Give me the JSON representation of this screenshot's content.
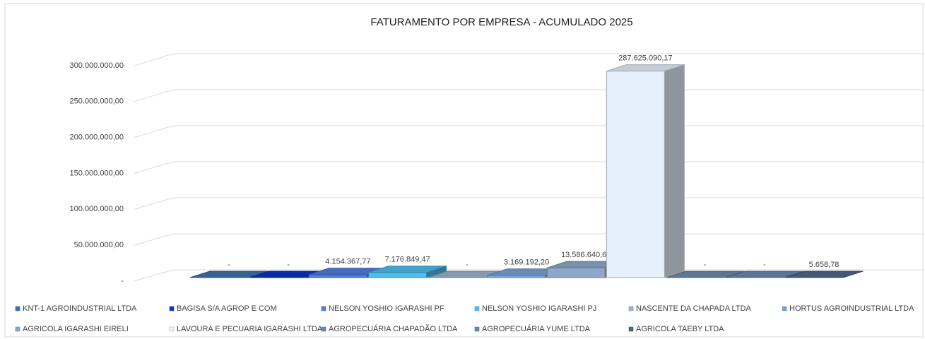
{
  "chart_data": {
    "type": "bar3d",
    "title": "FATURAMENTO POR EMPRESA - ACUMULADO 2025",
    "ylim": [
      0,
      300000000
    ],
    "yticks": [
      {
        "value": 0,
        "label": "-"
      },
      {
        "value": 50000000,
        "label": "50.000.000,00"
      },
      {
        "value": 100000000,
        "label": "100.000.000,00"
      },
      {
        "value": 150000000,
        "label": "150.000.000,00"
      },
      {
        "value": 200000000,
        "label": "200.000.000,00"
      },
      {
        "value": 250000000,
        "label": "250.000.000,00"
      },
      {
        "value": 300000000,
        "label": "300.000.000,00"
      }
    ],
    "grid": true,
    "legend": "bottom",
    "series": [
      {
        "name": "KNT-1 AGROINDUSTRIAL LTDA",
        "color": "#3f74a8",
        "values": [
          0
        ],
        "value_labels": [
          "-"
        ]
      },
      {
        "name": "BAGISA S/A AGROP E COM",
        "color": "#0a35c8",
        "values": [
          0
        ],
        "value_labels": [
          "-"
        ]
      },
      {
        "name": "NELSON YOSHIO IGARASHI PF",
        "color": "#4f7ee0",
        "values": [
          4154367.77
        ],
        "value_labels": [
          "4.154.367,77"
        ]
      },
      {
        "name": "NELSON YOSHIO IGARASHI PJ",
        "color": "#4fbdee",
        "values": [
          7176849.47
        ],
        "value_labels": [
          "7.176.849,47"
        ]
      },
      {
        "name": "NASCENTE DA CHAPADA LTDA",
        "color": "#9eb4d2",
        "values": [
          0
        ],
        "value_labels": [
          "-"
        ]
      },
      {
        "name": "HORTUS AGROINDUSTRIAL LTDA",
        "color": "#7ba4d8",
        "values": [
          3169192.2
        ],
        "value_labels": [
          "3.169.192,20"
        ]
      },
      {
        "name": "AGRICOLA IGARASHI EIRELI",
        "color": "#8ea8c9",
        "values": [
          13586640.64
        ],
        "value_labels": [
          "13.586.640,64"
        ]
      },
      {
        "name": "LAVOURA E PECUARIA IGARASHI LTDA",
        "color": "#e6f0fc",
        "values": [
          287625090.17
        ],
        "value_labels": [
          "287.625.090,17"
        ]
      },
      {
        "name": "AGROPECUÁRIA CHAPADÃO LTDA",
        "color": "#6d8cad",
        "values": [
          0
        ],
        "value_labels": [
          "-"
        ]
      },
      {
        "name": "AGROPECUÁRIA YUME LTDA",
        "color": "#6a8ab0",
        "values": [
          0
        ],
        "value_labels": [
          "-"
        ]
      },
      {
        "name": "AGRICOLA TAEBY LTDA",
        "color": "#4e6a8b",
        "values": [
          5658.78
        ],
        "value_labels": [
          "5.658,78"
        ]
      }
    ]
  }
}
